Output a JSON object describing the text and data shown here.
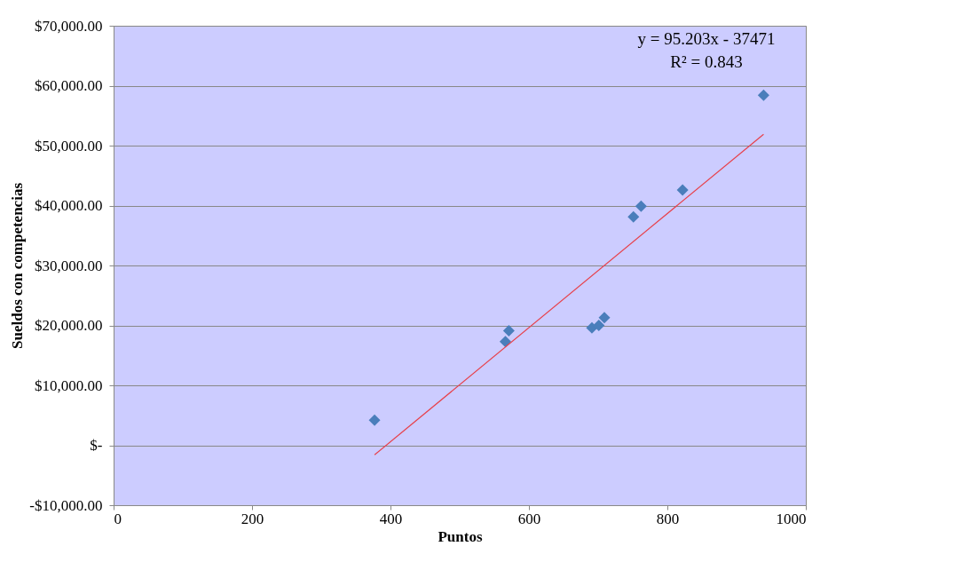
{
  "chart_data": {
    "type": "scatter",
    "xlabel": "Puntos",
    "ylabel": "Sueldos con competencias",
    "series": [
      {
        "color": "#4a7ebb",
        "marker": "diamond",
        "x": [
          377,
          566,
          571,
          691,
          701,
          709,
          751,
          762,
          822,
          939
        ],
        "values": [
          4200,
          17300,
          19100,
          19600,
          20000,
          21300,
          38100,
          39900,
          42600,
          58400
        ]
      },
      {
        "type": "line",
        "color": "#e8404a",
        "marker": "none",
        "x": [
          377,
          939
        ],
        "values": [
          -1600,
          51900
        ]
      }
    ],
    "xlim": [
      0,
      1000
    ],
    "xticks": [
      0,
      200,
      400,
      600,
      800,
      1000
    ],
    "ylim": [
      -10000,
      70000
    ],
    "yticks": [
      {
        "value": -10000,
        "label": "-$10,000.00"
      },
      {
        "value": 0,
        "label": "$-"
      },
      {
        "value": 10000,
        "label": "$10,000.00"
      },
      {
        "value": 20000,
        "label": "$20,000.00"
      },
      {
        "value": 30000,
        "label": "$30,000.00"
      },
      {
        "value": 40000,
        "label": "$40,000.00"
      },
      {
        "value": 50000,
        "label": "$50,000.00"
      },
      {
        "value": 60000,
        "label": "$60,000.00"
      },
      {
        "value": 70000,
        "label": "$70,000.00"
      }
    ],
    "grid": "y",
    "annotations": [
      "y = 95.203x - 37471",
      "R² = 0.843"
    ]
  }
}
